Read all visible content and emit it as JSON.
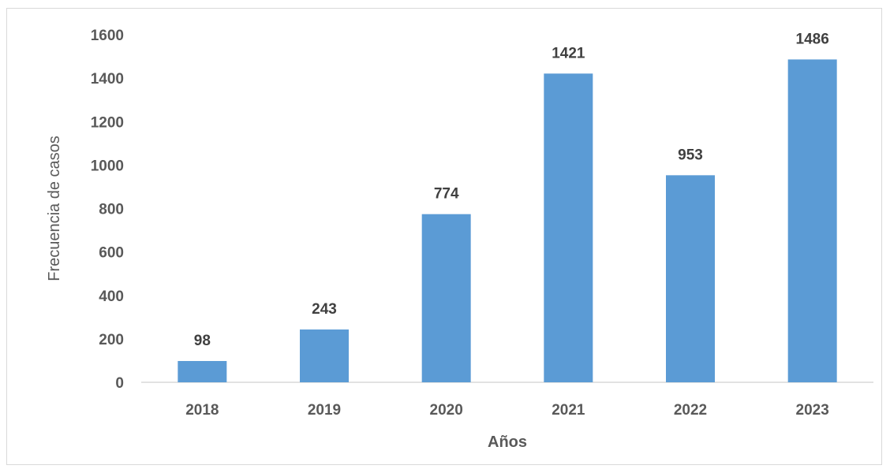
{
  "chart_data": {
    "type": "bar",
    "categories": [
      "2018",
      "2019",
      "2020",
      "2021",
      "2022",
      "2023"
    ],
    "values": [
      98,
      243,
      774,
      1421,
      953,
      1486
    ],
    "data_labels": [
      "98",
      "243",
      "774",
      "1421",
      "953",
      "1486"
    ],
    "title": "",
    "xlabel": "Años",
    "ylabel": "Frecuencia de casos",
    "ylim": [
      0,
      1600
    ],
    "yticks": [
      0,
      200,
      400,
      600,
      800,
      1000,
      1200,
      1400,
      1600
    ],
    "ytick_labels": [
      "0",
      "200",
      "400",
      "600",
      "800",
      "1000",
      "1200",
      "1400",
      "1600"
    ],
    "grid": false,
    "legend": "none",
    "bar_color": "#5b9bd5"
  }
}
